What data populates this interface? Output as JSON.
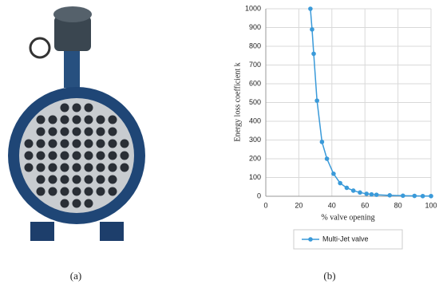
{
  "panel_labels": [
    "(a)",
    "(b)"
  ],
  "chart_data": {
    "type": "line",
    "x_label": "% valve opening",
    "y_label": "Energy loss coefficient k",
    "x": [
      27,
      28,
      29,
      31,
      34,
      37,
      41,
      45,
      49,
      53,
      57,
      61,
      64,
      67,
      75,
      83,
      90,
      95,
      100
    ],
    "series": [
      {
        "name": "Multi-Jet valve",
        "color": "#3a9ad9",
        "values": [
          1000,
          890,
          760,
          510,
          290,
          200,
          120,
          70,
          45,
          30,
          20,
          13,
          10,
          8,
          5,
          3,
          2,
          1,
          1
        ]
      }
    ],
    "xlim": [
      0,
      100
    ],
    "xticks": [
      0,
      20,
      40,
      60,
      80,
      100
    ],
    "ylim": [
      0,
      1000
    ],
    "yticks": [
      0,
      100,
      200,
      300,
      400,
      500,
      600,
      700,
      800,
      900,
      1000
    ],
    "grid": true,
    "legend": "bottom"
  }
}
